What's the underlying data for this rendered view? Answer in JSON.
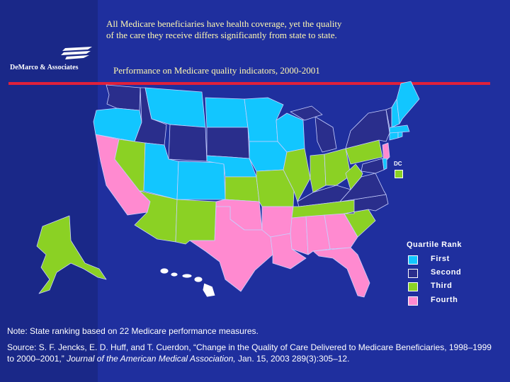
{
  "headline": {
    "line1": "All Medicare beneficiaries have health coverage, yet the quality",
    "line2": "of the care they receive differs significantly from state to state."
  },
  "logo": {
    "text": "DeMarco & Associates"
  },
  "subtitle": "Performance on Medicare quality indicators, 2000-2001",
  "map": {
    "dc_label": "DC",
    "dc_rank": "third",
    "quartile_colors": {
      "first": "#12c6ff",
      "second": "#2a2e8c",
      "third": "#8bd124",
      "fourth": "#ff8ad0"
    }
  },
  "legend": {
    "title": "Quartile Rank",
    "items": [
      {
        "label": "First",
        "color": "#12c6ff"
      },
      {
        "label": "Second",
        "color": "#2a2e8c"
      },
      {
        "label": "Third",
        "color": "#8bd124"
      },
      {
        "label": "Fourth",
        "color": "#ff8ad0"
      }
    ]
  },
  "note": "Note: State ranking based on 22 Medicare performance measures.",
  "source": {
    "prefix": "Source: S. F. Jencks, E. D. Huff, and T. Cuerdon, “Change in the Quality of Care Delivered to Medicare Beneficiaries, 1998–1999 to 2000–2001,” ",
    "journal": "Journal of the American Medical Association,",
    "suffix": " Jan. 15, 2003 289(3):305–12."
  }
}
